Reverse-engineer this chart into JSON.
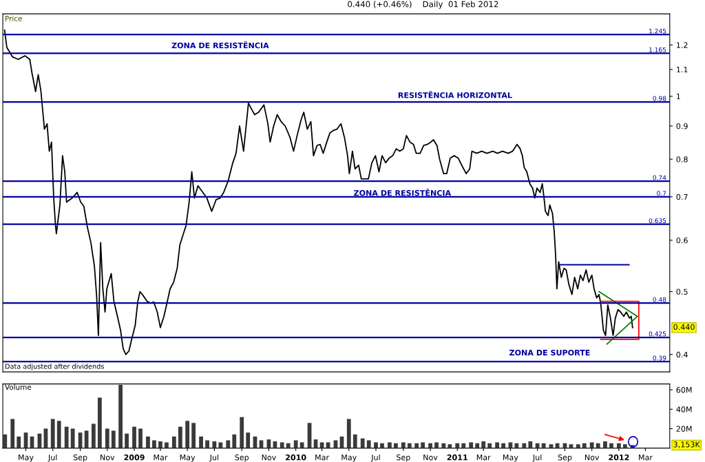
{
  "chart_data": [
    {
      "type": "line",
      "title": "0.440 (+0.46%)    Daily  01 Feb 2012",
      "ylabel": "Price",
      "log": true,
      "tick_labels": "y",
      "xlim": [
        "2008-03-10",
        "2012-04-25"
      ],
      "ylim": [
        0.376,
        1.34
      ],
      "yticks": [
        0.4,
        0.5,
        0.6,
        0.7,
        0.8,
        0.9,
        1,
        1.1,
        1.2
      ],
      "series": [
        {
          "type": "line",
          "color": "#000000",
          "x": [
            "2008-03-14",
            "2008-03-19",
            "2008-04-01",
            "2008-04-14",
            "2008-04-29",
            "2008-05-10",
            "2008-05-15",
            "2008-05-23",
            "2008-05-29",
            "2008-06-04",
            "2008-06-09",
            "2008-06-12",
            "2008-06-18",
            "2008-06-23",
            "2008-06-28",
            "2008-07-03",
            "2008-07-07",
            "2008-07-09",
            "2008-07-17",
            "2008-07-23",
            "2008-07-28",
            "2008-08-01",
            "2008-08-14",
            "2008-08-25",
            "2008-09-02",
            "2008-09-09",
            "2008-09-17",
            "2008-09-25",
            "2008-10-03",
            "2008-10-08",
            "2008-10-12",
            "2008-10-17",
            "2008-10-22",
            "2008-10-27",
            "2008-10-31",
            "2008-11-10",
            "2008-11-16",
            "2008-11-24",
            "2008-12-01",
            "2008-12-07",
            "2008-12-13",
            "2008-12-20",
            "2008-12-26",
            "2009-01-03",
            "2009-01-09",
            "2009-01-14",
            "2009-01-22",
            "2009-01-30",
            "2009-02-07",
            "2009-02-14",
            "2009-02-22",
            "2009-03-01",
            "2009-03-09",
            "2009-03-15",
            "2009-03-23",
            "2009-03-31",
            "2009-04-08",
            "2009-04-14",
            "2009-04-22",
            "2009-04-28",
            "2009-05-05",
            "2009-05-11",
            "2009-05-17",
            "2009-05-25",
            "2009-06-05",
            "2009-06-14",
            "2009-06-25",
            "2009-07-05",
            "2009-07-14",
            "2009-07-22",
            "2009-08-01",
            "2009-08-11",
            "2009-08-19",
            "2009-08-27",
            "2009-09-05",
            "2009-09-16",
            "2009-09-24",
            "2009-09-30",
            "2009-10-09",
            "2009-10-21",
            "2009-10-30",
            "2009-11-04",
            "2009-11-12",
            "2009-11-20",
            "2009-11-29",
            "2009-12-08",
            "2009-12-19",
            "2009-12-27",
            "2010-01-04",
            "2010-01-13",
            "2010-01-19",
            "2010-01-27",
            "2010-02-04",
            "2010-02-10",
            "2010-02-18",
            "2010-02-25",
            "2010-03-04",
            "2010-03-12",
            "2010-03-19",
            "2010-03-27",
            "2010-04-04",
            "2010-04-13",
            "2010-04-21",
            "2010-04-28",
            "2010-05-02",
            "2010-05-09",
            "2010-05-15",
            "2010-05-23",
            "2010-05-29",
            "2010-06-06",
            "2010-06-14",
            "2010-06-22",
            "2010-06-30",
            "2010-07-08",
            "2010-07-15",
            "2010-07-23",
            "2010-07-31",
            "2010-08-08",
            "2010-08-16",
            "2010-08-24",
            "2010-09-01",
            "2010-09-08",
            "2010-09-16",
            "2010-09-24",
            "2010-09-30",
            "2010-10-09",
            "2010-10-17",
            "2010-10-25",
            "2010-11-02",
            "2010-11-08",
            "2010-11-16",
            "2010-11-22",
            "2010-12-01",
            "2010-12-08",
            "2010-12-16",
            "2010-12-25",
            "2011-01-03",
            "2011-01-11",
            "2011-01-21",
            "2011-01-29",
            "2011-02-03",
            "2011-02-14",
            "2011-02-25",
            "2011-03-09",
            "2011-03-22",
            "2011-04-02",
            "2011-04-13",
            "2011-04-26",
            "2011-05-06",
            "2011-05-16",
            "2011-05-23",
            "2011-05-28",
            "2011-06-01",
            "2011-06-07",
            "2011-06-14",
            "2011-06-20",
            "2011-06-25",
            "2011-06-30",
            "2011-07-07",
            "2011-07-12",
            "2011-07-16",
            "2011-07-19",
            "2011-07-25",
            "2011-07-29",
            "2011-08-04",
            "2011-08-08",
            "2011-08-11",
            "2011-08-14",
            "2011-08-18",
            "2011-08-24",
            "2011-08-30",
            "2011-09-04",
            "2011-09-10",
            "2011-09-17",
            "2011-09-23",
            "2011-09-30",
            "2011-10-06",
            "2011-10-12",
            "2011-10-19",
            "2011-10-25",
            "2011-11-01",
            "2011-11-06",
            "2011-11-12",
            "2011-11-17",
            "2011-11-21",
            "2011-11-27",
            "2011-12-02",
            "2011-12-07",
            "2011-12-13",
            "2011-12-19",
            "2011-12-24",
            "2011-12-30",
            "2012-01-05",
            "2012-01-12",
            "2012-01-18",
            "2012-01-25",
            "2012-01-29",
            "2012-02-01"
          ],
          "values": [
            1.265,
            1.19,
            1.15,
            1.14,
            1.155,
            1.14,
            1.085,
            1.017,
            1.08,
            1.02,
            0.937,
            0.89,
            0.907,
            0.823,
            0.85,
            0.697,
            0.633,
            0.614,
            0.68,
            0.81,
            0.765,
            0.687,
            0.697,
            0.711,
            0.687,
            0.677,
            0.629,
            0.595,
            0.547,
            0.492,
            0.428,
            0.595,
            0.505,
            0.465,
            0.505,
            0.533,
            0.483,
            0.458,
            0.436,
            0.408,
            0.4,
            0.405,
            0.422,
            0.443,
            0.483,
            0.5,
            0.492,
            0.483,
            0.48,
            0.482,
            0.465,
            0.44,
            0.458,
            0.477,
            0.505,
            0.517,
            0.543,
            0.59,
            0.614,
            0.632,
            0.687,
            0.765,
            0.697,
            0.728,
            0.711,
            0.697,
            0.665,
            0.693,
            0.697,
            0.711,
            0.74,
            0.787,
            0.817,
            0.9,
            0.823,
            0.976,
            0.953,
            0.937,
            0.945,
            0.97,
            0.907,
            0.85,
            0.9,
            0.937,
            0.914,
            0.9,
            0.864,
            0.823,
            0.87,
            0.92,
            0.945,
            0.89,
            0.914,
            0.81,
            0.84,
            0.843,
            0.817,
            0.85,
            0.878,
            0.886,
            0.89,
            0.907,
            0.864,
            0.81,
            0.76,
            0.823,
            0.773,
            0.783,
            0.746,
            0.746,
            0.746,
            0.79,
            0.81,
            0.765,
            0.81,
            0.79,
            0.803,
            0.81,
            0.83,
            0.823,
            0.83,
            0.87,
            0.85,
            0.843,
            0.817,
            0.817,
            0.84,
            0.843,
            0.85,
            0.857,
            0.84,
            0.8,
            0.76,
            0.76,
            0.803,
            0.81,
            0.803,
            0.783,
            0.76,
            0.773,
            0.823,
            0.817,
            0.823,
            0.817,
            0.823,
            0.817,
            0.823,
            0.817,
            0.823,
            0.843,
            0.83,
            0.81,
            0.777,
            0.765,
            0.733,
            0.722,
            0.697,
            0.722,
            0.711,
            0.733,
            0.697,
            0.665,
            0.655,
            0.68,
            0.66,
            0.618,
            0.57,
            0.505,
            0.556,
            0.526,
            0.543,
            0.54,
            0.513,
            0.495,
            0.526,
            0.505,
            0.53,
            0.52,
            0.54,
            0.517,
            0.53,
            0.505,
            0.489,
            0.495,
            0.48,
            0.436,
            0.428,
            0.477,
            0.455,
            0.428,
            0.455,
            0.469,
            0.465,
            0.458,
            0.465,
            0.455,
            0.458,
            0.44
          ]
        },
        {
          "type": "line",
          "color": "#0000a0",
          "x": [
            "2011-08-21",
            "2012-01-24"
          ],
          "values": [
            0.55,
            0.55
          ]
        },
        {
          "type": "line",
          "color": "#008000",
          "x": [
            "2011-11-17",
            "2012-02-12",
            "2011-12-05"
          ],
          "values": [
            0.5,
            0.458,
            0.415
          ]
        },
        {
          "type": "line",
          "color": "#ff0000",
          "x": [
            "2011-11-21",
            "2012-02-15",
            "2012-02-15",
            "2011-11-21"
          ],
          "values": [
            0.483,
            0.483,
            0.422,
            0.422
          ]
        }
      ],
      "ref_lines": [
        {
          "axis": "y",
          "value": 1.245,
          "label": "1.245",
          "color": "#0000a0"
        },
        {
          "axis": "y",
          "value": 1.165,
          "label": "1.165",
          "color": "#0000a0"
        },
        {
          "axis": "y",
          "value": 0.98,
          "label": "0.98",
          "color": "#0000a0"
        },
        {
          "axis": "y",
          "value": 0.74,
          "label": "0.74",
          "color": "#0000a0"
        },
        {
          "axis": "y",
          "value": 0.7,
          "label": "0.7",
          "color": "#0000a0"
        },
        {
          "axis": "y",
          "value": 0.635,
          "label": "0.635",
          "color": "#0000a0"
        },
        {
          "axis": "y",
          "value": 0.48,
          "label": "0.48",
          "color": "#0000a0"
        },
        {
          "axis": "y",
          "value": 0.425,
          "label": "0.425",
          "color": "#0000a0"
        },
        {
          "axis": "y",
          "value": 0.39,
          "label": "0.39",
          "color": "#0000a0"
        }
      ],
      "annotations": [
        "ZONA DE RESISTÊNCIA",
        "RESISTÊNCIA HORIZONTAL",
        "ZONA DE RESISTÊNCIA",
        "ZONA DE SUPORTE",
        "0.440",
        "Data adjusted after dividends"
      ]
    },
    {
      "type": "bar",
      "ylabel": "Volume",
      "xlim": [
        "2008-03-10",
        "2012-04-25"
      ],
      "xticks": [
        {
          "value": "2008-05-01",
          "label": "May"
        },
        {
          "value": "2008-07-01",
          "label": "Jul"
        },
        {
          "value": "2008-09-01",
          "label": "Sep"
        },
        {
          "value": "2008-11-01",
          "label": "Nov"
        },
        {
          "value": "2009-01-01",
          "label": "2009"
        },
        {
          "value": "2009-03-01",
          "label": "Mar"
        },
        {
          "value": "2009-05-01",
          "label": "May"
        },
        {
          "value": "2009-07-01",
          "label": "Jul"
        },
        {
          "value": "2009-09-01",
          "label": "Sep"
        },
        {
          "value": "2009-11-01",
          "label": "Nov"
        },
        {
          "value": "2010-01-01",
          "label": "2010"
        },
        {
          "value": "2010-03-01",
          "label": "Mar"
        },
        {
          "value": "2010-05-01",
          "label": "May"
        },
        {
          "value": "2010-07-01",
          "label": "Jul"
        },
        {
          "value": "2010-09-01",
          "label": "Sep"
        },
        {
          "value": "2010-11-01",
          "label": "Nov"
        },
        {
          "value": "2011-01-01",
          "label": "2011"
        },
        {
          "value": "2011-03-01",
          "label": "Mar"
        },
        {
          "value": "2011-05-01",
          "label": "May"
        },
        {
          "value": "2011-07-01",
          "label": "Jul"
        },
        {
          "value": "2011-09-01",
          "label": "Sep"
        },
        {
          "value": "2011-11-01",
          "label": "Nov"
        },
        {
          "value": "2012-01-01",
          "label": "2012"
        },
        {
          "value": "2012-03-01",
          "label": "Mar"
        }
      ],
      "ylim": [
        0,
        66
      ],
      "yticks": [
        {
          "value": 20,
          "label": "20M"
        },
        {
          "value": 40,
          "label": "40M"
        },
        {
          "value": 60,
          "label": "60M"
        }
      ],
      "series": [
        {
          "type": "bar",
          "color": "#3a3a3a",
          "x": [
            "2008-03-15",
            "2008-04-01",
            "2008-04-15",
            "2008-05-01",
            "2008-05-15",
            "2008-06-01",
            "2008-06-15",
            "2008-07-01",
            "2008-07-15",
            "2008-08-01",
            "2008-08-15",
            "2008-09-01",
            "2008-09-15",
            "2008-10-01",
            "2008-10-15",
            "2008-11-01",
            "2008-11-15",
            "2008-12-01",
            "2008-12-15",
            "2009-01-01",
            "2009-01-15",
            "2009-02-01",
            "2009-02-15",
            "2009-03-01",
            "2009-03-15",
            "2009-04-01",
            "2009-04-15",
            "2009-05-01",
            "2009-05-15",
            "2009-06-01",
            "2009-06-15",
            "2009-07-01",
            "2009-07-15",
            "2009-08-01",
            "2009-08-15",
            "2009-09-01",
            "2009-09-15",
            "2009-10-01",
            "2009-10-15",
            "2009-11-01",
            "2009-11-15",
            "2009-12-01",
            "2009-12-15",
            "2010-01-01",
            "2010-01-15",
            "2010-02-01",
            "2010-02-15",
            "2010-03-01",
            "2010-03-15",
            "2010-04-01",
            "2010-04-15",
            "2010-05-01",
            "2010-05-15",
            "2010-06-01",
            "2010-06-15",
            "2010-07-01",
            "2010-07-15",
            "2010-08-01",
            "2010-08-15",
            "2010-09-01",
            "2010-09-15",
            "2010-10-01",
            "2010-10-15",
            "2010-11-01",
            "2010-11-15",
            "2010-12-01",
            "2010-12-15",
            "2011-01-01",
            "2011-01-15",
            "2011-02-01",
            "2011-02-15",
            "2011-03-01",
            "2011-03-15",
            "2011-04-01",
            "2011-04-15",
            "2011-05-01",
            "2011-05-15",
            "2011-06-01",
            "2011-06-15",
            "2011-07-01",
            "2011-07-15",
            "2011-08-01",
            "2011-08-15",
            "2011-09-01",
            "2011-09-15",
            "2011-10-01",
            "2011-10-15",
            "2011-11-01",
            "2011-11-15",
            "2011-12-01",
            "2011-12-15",
            "2012-01-01",
            "2012-01-15",
            "2012-02-01"
          ],
          "values": [
            14,
            30,
            12,
            16,
            12,
            15,
            20,
            30,
            28,
            22,
            20,
            16,
            18,
            25,
            52,
            20,
            18,
            65,
            15,
            22,
            20,
            12,
            8,
            7,
            6,
            12,
            22,
            28,
            26,
            12,
            8,
            7,
            6,
            8,
            14,
            32,
            16,
            12,
            8,
            9,
            7,
            6,
            5,
            8,
            6,
            26,
            9,
            6,
            6,
            8,
            12,
            30,
            14,
            10,
            8,
            6,
            5,
            6,
            5,
            6,
            5,
            5,
            6,
            5,
            6,
            5,
            4,
            5,
            5,
            6,
            5,
            7,
            5,
            6,
            5,
            6,
            5,
            5,
            7,
            5,
            5,
            4,
            5,
            5,
            4,
            4,
            5,
            6,
            5,
            7,
            5,
            5,
            4,
            3.153
          ]
        }
      ],
      "annotations": [
        "3,153K"
      ]
    }
  ]
}
